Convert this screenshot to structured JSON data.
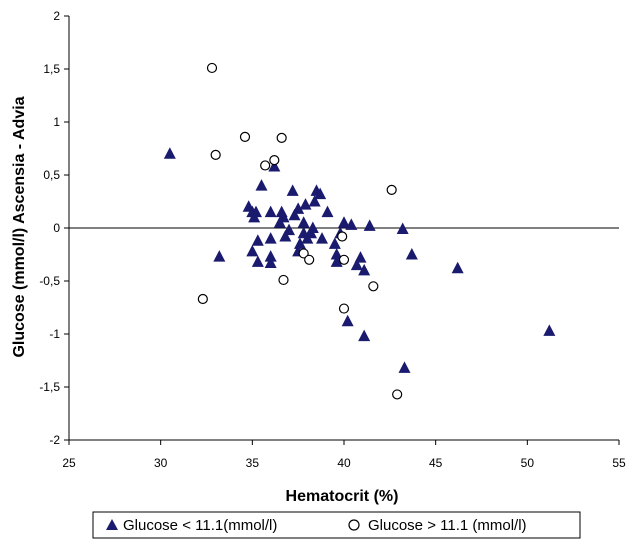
{
  "chart_data": {
    "type": "scatter",
    "xlabel": "Hematocrit (%)",
    "ylabel": "Glucose (mmol/l) Ascensia - Advia",
    "xlim": [
      25,
      55
    ],
    "ylim": [
      -2,
      2
    ],
    "x_ticks": [
      25,
      30,
      35,
      40,
      45,
      50,
      55
    ],
    "x_tick_labels": [
      "25",
      "30",
      "35",
      "40",
      "45",
      "50",
      "55"
    ],
    "y_ticks": [
      2,
      1.5,
      1,
      0.5,
      0,
      -0.5,
      -1,
      -1.5,
      -2
    ],
    "y_tick_labels": [
      "2",
      "1,5",
      "1",
      "0,5",
      "0",
      "-0,5",
      "-1",
      "-1,5",
      "-2"
    ],
    "zero_line": true,
    "grid": false,
    "legend_position": "bottom",
    "colors": {
      "triangle": "#1a1a6e",
      "axis": "#000000"
    },
    "series": [
      {
        "name": "Glucose < 11.1(mmol/l)",
        "marker": "triangle",
        "points": [
          [
            30.5,
            0.7
          ],
          [
            33.2,
            -0.27
          ],
          [
            34.8,
            0.2
          ],
          [
            35.0,
            0.15
          ],
          [
            35.1,
            0.1
          ],
          [
            35.0,
            -0.22
          ],
          [
            35.3,
            -0.32
          ],
          [
            35.3,
            -0.12
          ],
          [
            35.2,
            0.15
          ],
          [
            35.5,
            0.4
          ],
          [
            36.0,
            0.15
          ],
          [
            36.0,
            -0.1
          ],
          [
            36.0,
            -0.27
          ],
          [
            36.0,
            -0.33
          ],
          [
            36.2,
            0.58
          ],
          [
            36.5,
            0.05
          ],
          [
            36.6,
            0.15
          ],
          [
            36.7,
            0.1
          ],
          [
            36.8,
            -0.08
          ],
          [
            37.0,
            -0.02
          ],
          [
            37.2,
            0.35
          ],
          [
            37.3,
            0.12
          ],
          [
            37.5,
            0.18
          ],
          [
            37.5,
            -0.22
          ],
          [
            37.6,
            -0.15
          ],
          [
            37.8,
            0.05
          ],
          [
            37.8,
            -0.05
          ],
          [
            37.9,
            0.22
          ],
          [
            38.0,
            -0.1
          ],
          [
            38.2,
            -0.05
          ],
          [
            38.3,
            0.0
          ],
          [
            38.4,
            0.25
          ],
          [
            38.5,
            0.35
          ],
          [
            38.7,
            0.32
          ],
          [
            38.8,
            -0.1
          ],
          [
            39.1,
            0.15
          ],
          [
            39.5,
            -0.15
          ],
          [
            39.6,
            -0.25
          ],
          [
            39.6,
            -0.32
          ],
          [
            39.8,
            -0.05
          ],
          [
            40.0,
            0.05
          ],
          [
            40.2,
            -0.88
          ],
          [
            40.4,
            0.03
          ],
          [
            40.7,
            -0.35
          ],
          [
            40.9,
            -0.28
          ],
          [
            41.1,
            -1.02
          ],
          [
            41.1,
            -0.4
          ],
          [
            41.4,
            0.02
          ],
          [
            43.2,
            -0.01
          ],
          [
            43.3,
            -1.32
          ],
          [
            43.7,
            -0.25
          ],
          [
            46.2,
            -0.38
          ],
          [
            51.2,
            -0.97
          ]
        ]
      },
      {
        "name": "Glucose > 11.1 (mmol/l)",
        "marker": "circle",
        "points": [
          [
            32.3,
            -0.67
          ],
          [
            32.8,
            1.51
          ],
          [
            33.0,
            0.69
          ],
          [
            34.6,
            0.86
          ],
          [
            35.7,
            0.59
          ],
          [
            36.2,
            0.64
          ],
          [
            36.6,
            0.85
          ],
          [
            36.7,
            -0.49
          ],
          [
            37.8,
            -0.24
          ],
          [
            38.1,
            -0.3
          ],
          [
            39.9,
            -0.08
          ],
          [
            40.0,
            -0.3
          ],
          [
            40.0,
            -0.76
          ],
          [
            41.6,
            -0.55
          ],
          [
            42.6,
            0.36
          ],
          [
            42.9,
            -1.57
          ]
        ]
      }
    ]
  }
}
